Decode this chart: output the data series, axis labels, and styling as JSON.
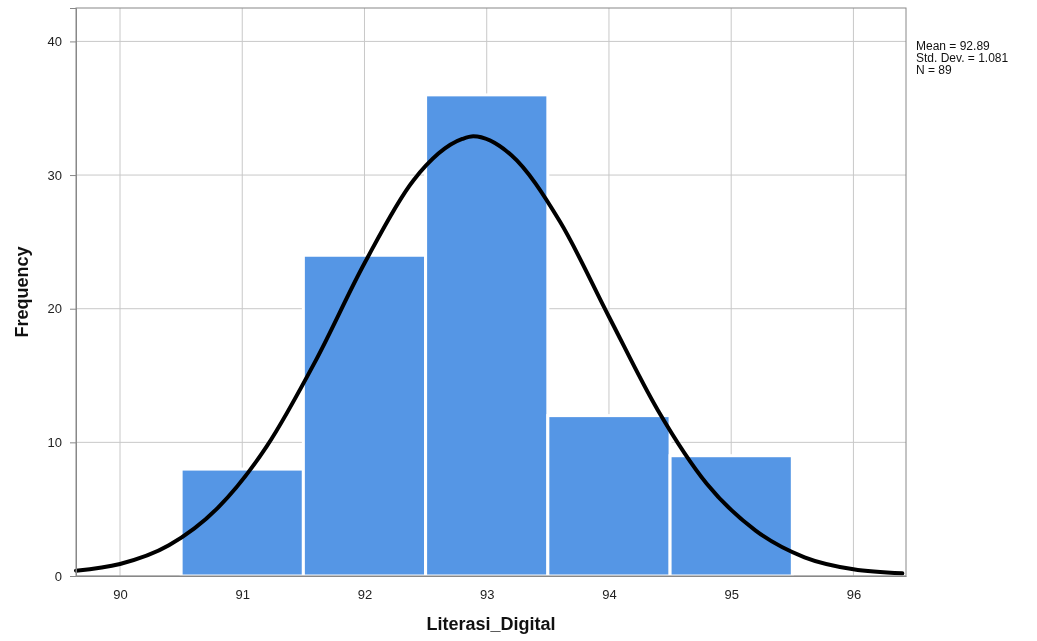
{
  "chart_data": {
    "type": "histogram",
    "xlabel": "Literasi_Digital",
    "ylabel": "Frequency",
    "annotations": [
      "Mean = 92.89",
      "Std. Dev. = 1.081",
      "N = 89"
    ],
    "bins": [
      90.5,
      91.5,
      92.5,
      93.5,
      94.5,
      95.5
    ],
    "series": [
      {
        "color": "#5596e5",
        "values": [
          8,
          24,
          36,
          12,
          9
        ]
      },
      {
        "type": "line",
        "color": "#000000",
        "x": [
          89.64,
          90.0,
          90.4,
          90.8,
          91.2,
          91.6,
          92.0,
          92.4,
          92.8,
          92.89,
          93.2,
          93.6,
          94.0,
          94.4,
          94.8,
          95.2,
          95.6,
          96.0,
          96.4
        ],
        "values": [
          0.4,
          0.9,
          2.3,
          5.1,
          9.7,
          16.1,
          23.4,
          29.6,
          32.7,
          32.9,
          31.5,
          26.5,
          19.4,
          12.4,
          6.9,
          3.4,
          1.4,
          0.5,
          0.2
        ]
      }
    ],
    "xlim": [
      89.64,
      96.43
    ],
    "xticks": [
      90,
      91,
      92,
      93,
      94,
      95,
      96
    ],
    "ylim": [
      0,
      42.5
    ],
    "yticks": [
      0,
      10,
      20,
      30,
      40
    ],
    "grid": true,
    "marker": "none",
    "line_style": "solid"
  }
}
